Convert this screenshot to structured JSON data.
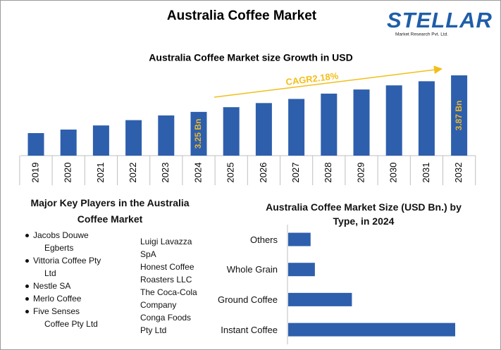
{
  "title": "Australia Coffee Market",
  "logo": {
    "name": "STELLAR",
    "tagline": "Market Research Pvt. Ltd."
  },
  "chart_data": [
    {
      "type": "bar",
      "title": "Australia Coffee Market size Growth in USD",
      "annotation": "CAGR2.18%",
      "categories": [
        "2019",
        "2020",
        "2021",
        "2022",
        "2023",
        "2024",
        "2025",
        "2026",
        "2027",
        "2028",
        "2029",
        "2030",
        "2031",
        "2032"
      ],
      "values": [
        2.89,
        2.95,
        3.02,
        3.11,
        3.19,
        3.25,
        3.33,
        3.4,
        3.47,
        3.56,
        3.63,
        3.7,
        3.77,
        3.87
      ],
      "value_labels": [
        null,
        null,
        null,
        null,
        null,
        "3.25 Bn",
        null,
        null,
        null,
        null,
        null,
        null,
        null,
        "3.87 Bn"
      ],
      "color": "#2e5fad",
      "label_color": "#e8b62c",
      "annotation_color": "#f2be1a"
    },
    {
      "type": "barh",
      "title": "Australia Coffee Market Size (USD Bn.) by Type, in 2024",
      "categories": [
        "Others",
        "Whole Grain",
        "Ground Coffee",
        "Instant Coffee"
      ],
      "values": [
        0.26,
        0.31,
        0.74,
        1.94
      ],
      "color": "#2e5fad"
    }
  ],
  "key_players": {
    "title": "Major Key Players in the Australia Coffee Market",
    "items": [
      "Jacobs Douwe Egberts",
      "Vittoria Coffee Pty Ltd",
      "Nestle SA",
      "Merlo Coffee",
      "Five Senses Coffee Pty Ltd",
      "Luigi Lavazza SpA",
      "Honest Coffee Roasters LLC",
      "The Coca-Cola Company",
      "Conga Foods Pty Ltd"
    ]
  }
}
